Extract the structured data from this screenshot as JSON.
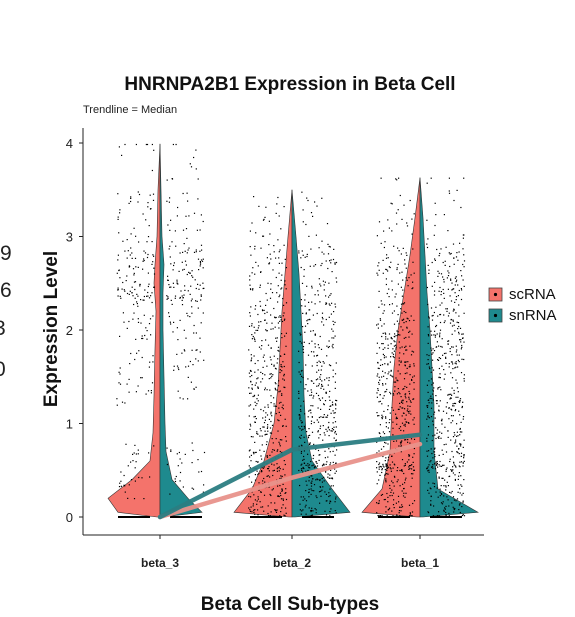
{
  "chart_data": {
    "type": "violin",
    "title": "HNRNPA2B1 Expression in Beta Cell",
    "subtitle": "Trendline = Median",
    "xlabel": "Beta Cell Sub-types",
    "ylabel": "Expression Level",
    "categories": [
      "beta_3",
      "beta_2",
      "beta_1"
    ],
    "ylim": [
      0,
      4
    ],
    "yticks": [
      "0",
      "1",
      "2",
      "3",
      "4"
    ],
    "grid": false,
    "legend_position": "right",
    "series": [
      {
        "name": "scRNA",
        "color": "#F4736B",
        "trend_color": "#E8928B",
        "median": [
          0.0,
          0.42,
          0.78
        ],
        "max": [
          3.99,
          3.5,
          3.63
        ]
      },
      {
        "name": "snRNA",
        "color": "#1E8A8E",
        "trend_color": "#2B7D82",
        "median": [
          0.0,
          0.72,
          0.88
        ],
        "max": [
          3.99,
          3.5,
          3.63
        ]
      }
    ],
    "left_cut_labels": [
      "9",
      "6",
      "3",
      "0"
    ]
  }
}
